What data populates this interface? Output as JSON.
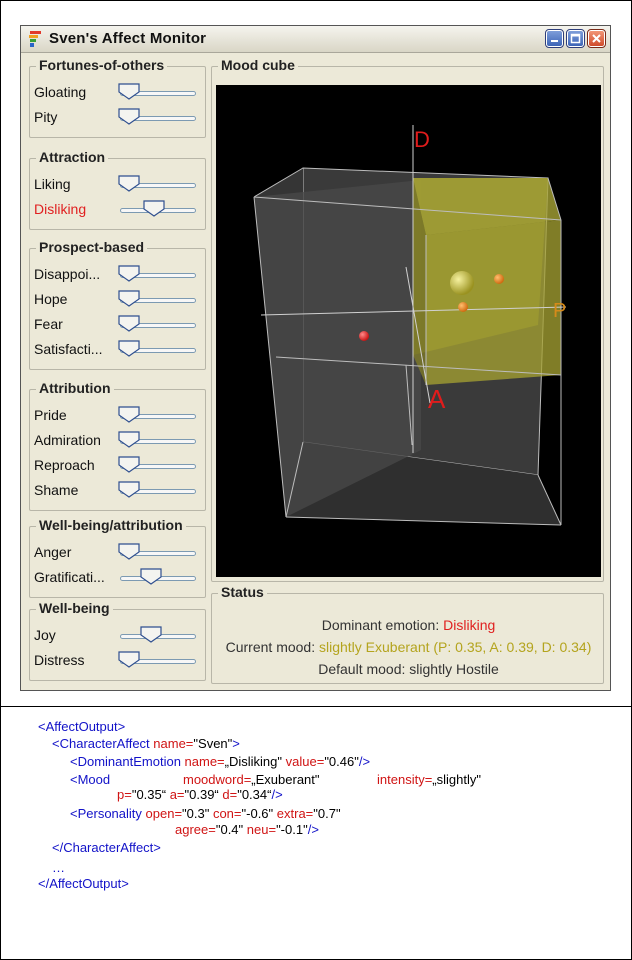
{
  "window": {
    "title": "Sven's Affect Monitor"
  },
  "groups": [
    {
      "title": "Fortunes-of-others",
      "rows": [
        {
          "label": "Gloating",
          "value": 0.0,
          "highlight": false
        },
        {
          "label": "Pity",
          "value": 0.0,
          "highlight": false
        }
      ]
    },
    {
      "title": "Attraction",
      "rows": [
        {
          "label": "Liking",
          "value": 0.0,
          "highlight": false
        },
        {
          "label": "Disliking",
          "value": 0.46,
          "highlight": true
        }
      ]
    },
    {
      "title": "Prospect-based",
      "rows": [
        {
          "label": "Disappoi...",
          "value": 0.0,
          "highlight": false
        },
        {
          "label": "Hope",
          "value": 0.0,
          "highlight": false
        },
        {
          "label": "Fear",
          "value": 0.0,
          "highlight": false
        },
        {
          "label": "Satisfacti...",
          "value": 0.0,
          "highlight": false
        }
      ]
    },
    {
      "title": "Attribution",
      "rows": [
        {
          "label": "Pride",
          "value": 0.0,
          "highlight": false
        },
        {
          "label": "Admiration",
          "value": 0.0,
          "highlight": false
        },
        {
          "label": "Reproach",
          "value": 0.0,
          "highlight": false
        },
        {
          "label": "Shame",
          "value": 0.0,
          "highlight": false
        }
      ]
    },
    {
      "title": "Well-being/attribution",
      "rows": [
        {
          "label": "Anger",
          "value": 0.0,
          "highlight": false
        },
        {
          "label": "Gratificati...",
          "value": 0.4,
          "highlight": false
        }
      ]
    },
    {
      "title": "Well-being",
      "rows": [
        {
          "label": "Joy",
          "value": 0.4,
          "highlight": false
        },
        {
          "label": "Distress",
          "value": 0.0,
          "highlight": false
        }
      ]
    }
  ],
  "mood_cube": {
    "title": "Mood cube",
    "axis_labels": {
      "d": "D",
      "a": "A",
      "p": "P"
    }
  },
  "status": {
    "title": "Status",
    "dominant_label": "Dominant emotion: ",
    "dominant_value": "Disliking",
    "current_label": "Current mood: ",
    "current_value": "slightly Exuberant (P: 0.35, A: 0.39, D: 0.34)",
    "default_text": "Default mood: slightly Hostile"
  },
  "xml": {
    "affect_open": "<AffectOutput>",
    "char_open_tag": "<CharacterAffect",
    "char_attr_name": " name=",
    "char_val_name": "\"Sven\"",
    "char_close": ">",
    "dom_tag": "<DominantEmotion",
    "dom_attr_name": " name=",
    "dom_val_name": "„Disliking\"",
    "dom_attr_value": " value=",
    "dom_val_value": "\"0.46\"",
    "dom_end": "/>",
    "mood_tag": "<Mood",
    "mood_attr_word": "moodword=",
    "mood_val_word": "„Exuberant\"",
    "mood_attr_int": "intensity=",
    "mood_val_int": "„slightly\"",
    "mood_attr_p": "p=",
    "mood_val_p": "\"0.35“",
    "mood_attr_a": " a=",
    "mood_val_a": "\"0.39“",
    "mood_attr_d": " d=",
    "mood_val_d": "\"0.34“",
    "mood_end": "/>",
    "pers_tag": "<Personality",
    "pers_attr_open": " open=",
    "pers_val_open": "\"0.3\"",
    "pers_attr_con": " con=",
    "pers_val_con": "\"-0.6\"",
    "pers_attr_extra": " extra=",
    "pers_val_extra": "\"0.7\"",
    "pers_attr_agree": "agree=",
    "pers_val_agree": "\"0.4\"",
    "pers_attr_neu": " neu=",
    "pers_val_neu": "\"-0.1\"",
    "pers_end": "/>",
    "char_close_tag": "</CharacterAffect>",
    "ellipsis": "…",
    "affect_close": "</AffectOutput>"
  },
  "colors": {
    "highlight_red": "#e02020",
    "mood_olive": "#b4a41e",
    "xml_tag": "#1212c8",
    "xml_attr": "#d01414"
  }
}
